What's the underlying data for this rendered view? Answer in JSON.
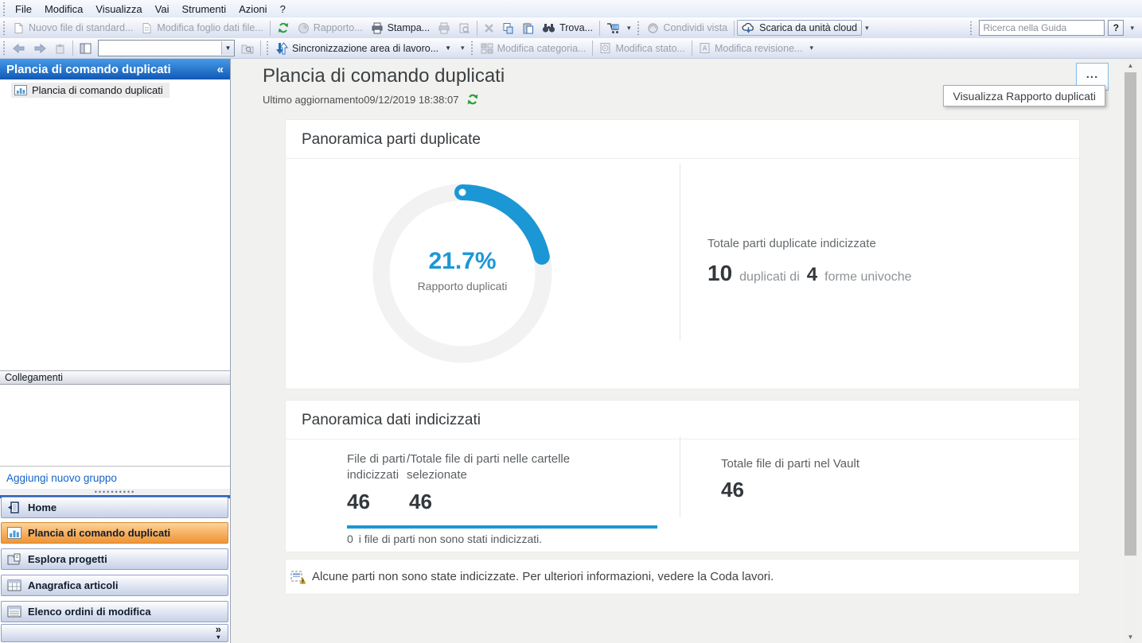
{
  "menu_bar": {
    "items": [
      "File",
      "Modifica",
      "Visualizza",
      "Vai",
      "Strumenti",
      "Azioni",
      "?"
    ]
  },
  "toolbar1": {
    "new_standard_file": "Nuovo file di standard...",
    "edit_file_datasheet": "Modifica foglio dati file...",
    "report": "Rapporto...",
    "print": "Stampa...",
    "find": "Trova...",
    "share_view": "Condividi vista",
    "download_cloud": "Scarica da unità cloud",
    "help_search_value": "Ricerca nella Guida",
    "help_button": "?"
  },
  "toolbar2": {
    "workspace_sync": "Sincronizzazione area di lavoro...",
    "edit_category": "Modifica categoria...",
    "edit_state": "Modifica stato...",
    "edit_revision": "Modifica revisione..."
  },
  "sidebar": {
    "header": "Plancia di comando duplicati",
    "tree_item": "Plancia di comando duplicati",
    "links_header": "Collegamenti",
    "add_group_link": "Aggiungi nuovo gruppo",
    "nav": [
      {
        "label": "Home",
        "selected": false
      },
      {
        "label": "Plancia di comando duplicati",
        "selected": true
      },
      {
        "label": "Esplora progetti",
        "selected": false
      },
      {
        "label": "Anagrafica articoli",
        "selected": false
      },
      {
        "label": "Elenco ordini di modifica",
        "selected": false
      }
    ]
  },
  "main": {
    "title": "Plancia di comando duplicati",
    "last_update_label": "Ultimo aggiornamento",
    "last_update_value": "09/12/2019 18:38:07",
    "more_label": "...",
    "tooltip": "Visualizza Rapporto duplicati",
    "duplicates_card": {
      "title": "Panoramica parti duplicate",
      "percent_label": "21.7%",
      "percent_caption": "Rapporto duplicati",
      "total_label": "Totale parti duplicate indicizzate",
      "dup_count": "10",
      "dup_text": "duplicati di",
      "unique_count": "4",
      "unique_text": "forme univoche"
    },
    "indexed_card": {
      "title": "Panoramica dati indicizzati",
      "col1_label": "File di parti indicizzati",
      "col1_value": "46",
      "col2_label": "/Totale file di parti nelle cartelle selezionate",
      "col2_value": "46",
      "progress_percent": 100,
      "not_indexed_count": "0",
      "not_indexed_text": "i file di parti non sono stati indicizzati.",
      "vault_total_label": "Totale file di parti nel Vault",
      "vault_total_value": "46"
    },
    "notice": "Alcune parti non sono state indicizzate. Per ulteriori informazioni, vedere la Coda lavori."
  },
  "icons": {
    "collapse_chevron": "«",
    "expand_chevron": "»",
    "overflow_arrow": "▾",
    "scroll_up": "▲",
    "scroll_down": "▼",
    "splitter_dots": "••••••••••"
  },
  "colors": {
    "accent_blue": "#1b97d5",
    "donut_track": "#f2f2f2",
    "refresh_green": "#2aa13c",
    "selected_nav_orange": "#ef9435",
    "sidebar_header_blue": "#1159b5",
    "link_blue": "#1464c8",
    "warning_yellow": "#f6c21c"
  },
  "chart_data": {
    "type": "donut",
    "title": "Panoramica parti duplicate",
    "percent": 21.7,
    "center_label": "21.7%",
    "center_caption": "Rapporto duplicati",
    "start_angle_deg": 0,
    "direction": "clockwise",
    "color": "#1b97d5",
    "track_color": "#f2f2f2",
    "related_values": {
      "duplicates": 10,
      "unique_shapes": 4,
      "indexed_files": 46,
      "total_files_selected": 46,
      "total_files_vault": 46,
      "not_indexed": 0
    }
  }
}
